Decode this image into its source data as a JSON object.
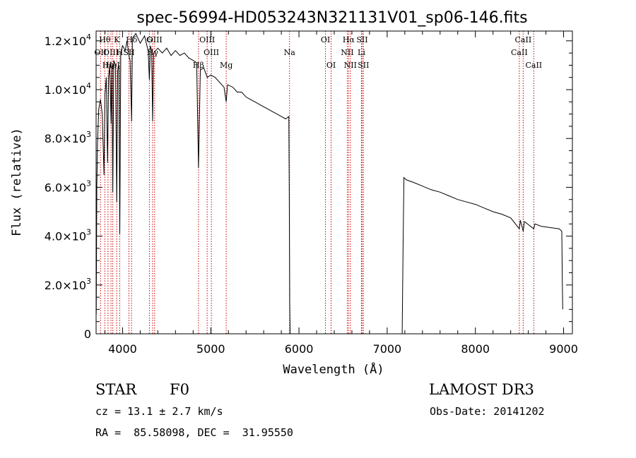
{
  "chart_data": {
    "type": "line",
    "title": "spec-56994-HD053243N321131V01_sp06-146.fits",
    "xlabel": "Wavelength (Å)",
    "ylabel": "Flux (relative)",
    "xlim": [
      3700,
      9100
    ],
    "ylim": [
      0,
      12400
    ],
    "x_ticks": [
      {
        "value": 4000,
        "label": "4000"
      },
      {
        "value": 5000,
        "label": "5000"
      },
      {
        "value": 6000,
        "label": "6000"
      },
      {
        "value": 7000,
        "label": "7000"
      },
      {
        "value": 8000,
        "label": "8000"
      },
      {
        "value": 9000,
        "label": "9000"
      }
    ],
    "y_ticks": [
      {
        "value": 0,
        "mant": "0",
        "exp": ""
      },
      {
        "value": 2000,
        "mant": "2.0×10",
        "exp": "3"
      },
      {
        "value": 4000,
        "mant": "4.0×10",
        "exp": "3"
      },
      {
        "value": 6000,
        "mant": "6.0×10",
        "exp": "3"
      },
      {
        "value": 8000,
        "mant": "8.0×10",
        "exp": "3"
      },
      {
        "value": 10000,
        "mant": "1.0×10",
        "exp": "4"
      },
      {
        "value": 12000,
        "mant": "1.2×10",
        "exp": "4"
      }
    ],
    "lines": [
      {
        "wl": 3750,
        "label": "OII",
        "row": 2
      },
      {
        "wl": 3799,
        "label": "Hθ",
        "row": 1
      },
      {
        "wl": 3835,
        "label": "Hη",
        "row": 3
      },
      {
        "wl": 3869,
        "label": "OIII",
        "row": 2
      },
      {
        "wl": 3889,
        "label": "HeI",
        "row": 3
      },
      {
        "wl": 3934,
        "label": "K",
        "row": 1
      },
      {
        "wl": 3968,
        "label": "H",
        "row": 2
      },
      {
        "wl": 4102,
        "label": "Hδ",
        "row": 1
      },
      {
        "wl": 4072,
        "label": "SII",
        "row": 2
      },
      {
        "wl": 4304,
        "label": "G",
        "row": 1
      },
      {
        "wl": 4341,
        "label": "Hγ",
        "row": 2
      },
      {
        "wl": 4363,
        "label": "OIII",
        "row": 1
      },
      {
        "wl": 4861,
        "label": "Hβ",
        "row": 4
      },
      {
        "wl": 4959,
        "label": "OIII",
        "row": 1
      },
      {
        "wl": 5007,
        "label": "OIII",
        "row": 2
      },
      {
        "wl": 5175,
        "label": "Mg",
        "row": 4
      },
      {
        "wl": 5893,
        "label": "Na",
        "row": 2
      },
      {
        "wl": 6300,
        "label": "OI",
        "row": 1
      },
      {
        "wl": 6364,
        "label": "OI",
        "row": 3
      },
      {
        "wl": 6548,
        "label": "NII",
        "row": 2
      },
      {
        "wl": 6563,
        "label": "Hα",
        "row": 1
      },
      {
        "wl": 6583,
        "label": "NII",
        "row": 3
      },
      {
        "wl": 6708,
        "label": "Li",
        "row": 2
      },
      {
        "wl": 6716,
        "label": "SII",
        "row": 1
      },
      {
        "wl": 6731,
        "label": "SII",
        "row": 3
      },
      {
        "wl": 8498,
        "label": "CaII",
        "row": 2
      },
      {
        "wl": 8542,
        "label": "CaII",
        "row": 1
      },
      {
        "wl": 8662,
        "label": "CaII",
        "row": 3
      }
    ],
    "spectrum": [
      [
        3702,
        800
      ],
      [
        3708,
        6000
      ],
      [
        3716,
        7800
      ],
      [
        3730,
        9200
      ],
      [
        3750,
        9600
      ],
      [
        3770,
        9000
      ],
      [
        3790,
        6500
      ],
      [
        3800,
        9800
      ],
      [
        3815,
        10500
      ],
      [
        3830,
        7000
      ],
      [
        3842,
        10500
      ],
      [
        3855,
        11000
      ],
      [
        3870,
        8600
      ],
      [
        3880,
        11000
      ],
      [
        3889,
        5800
      ],
      [
        3900,
        11200
      ],
      [
        3920,
        11000
      ],
      [
        3934,
        5400
      ],
      [
        3945,
        10800
      ],
      [
        3958,
        11000
      ],
      [
        3968,
        4100
      ],
      [
        3980,
        11500
      ],
      [
        4000,
        11800
      ],
      [
        4030,
        11600
      ],
      [
        4050,
        12000
      ],
      [
        4072,
        11400
      ],
      [
        4085,
        11200
      ],
      [
        4102,
        8700
      ],
      [
        4112,
        12100
      ],
      [
        4150,
        12300
      ],
      [
        4200,
        11900
      ],
      [
        4250,
        12200
      ],
      [
        4290,
        11600
      ],
      [
        4304,
        10400
      ],
      [
        4315,
        11800
      ],
      [
        4330,
        11600
      ],
      [
        4341,
        8700
      ],
      [
        4352,
        11500
      ],
      [
        4400,
        11700
      ],
      [
        4450,
        11500
      ],
      [
        4500,
        11700
      ],
      [
        4550,
        11400
      ],
      [
        4600,
        11600
      ],
      [
        4650,
        11400
      ],
      [
        4700,
        11500
      ],
      [
        4750,
        11300
      ],
      [
        4800,
        11200
      ],
      [
        4840,
        11100
      ],
      [
        4861,
        6800
      ],
      [
        4882,
        10800
      ],
      [
        4920,
        10900
      ],
      [
        4960,
        10500
      ],
      [
        5000,
        10600
      ],
      [
        5050,
        10500
      ],
      [
        5100,
        10300
      ],
      [
        5150,
        10100
      ],
      [
        5175,
        9500
      ],
      [
        5190,
        10200
      ],
      [
        5250,
        10100
      ],
      [
        5300,
        9900
      ],
      [
        5350,
        9900
      ],
      [
        5400,
        9700
      ],
      [
        5450,
        9600
      ],
      [
        5500,
        9500
      ],
      [
        5550,
        9400
      ],
      [
        5600,
        9300
      ],
      [
        5650,
        9200
      ],
      [
        5700,
        9100
      ],
      [
        5750,
        9000
      ],
      [
        5800,
        8900
      ],
      [
        5850,
        8800
      ],
      [
        5885,
        8900
      ],
      [
        5890,
        6000
      ],
      [
        5895,
        1200
      ],
      [
        5900,
        0
      ],
      [
        7170,
        0
      ],
      [
        7180,
        3600
      ],
      [
        7190,
        6400
      ],
      [
        7220,
        6300
      ],
      [
        7300,
        6200
      ],
      [
        7400,
        6050
      ],
      [
        7500,
        5900
      ],
      [
        7600,
        5800
      ],
      [
        7700,
        5650
      ],
      [
        7800,
        5500
      ],
      [
        7900,
        5400
      ],
      [
        8000,
        5300
      ],
      [
        8100,
        5150
      ],
      [
        8200,
        5000
      ],
      [
        8300,
        4900
      ],
      [
        8400,
        4750
      ],
      [
        8498,
        4300
      ],
      [
        8510,
        4650
      ],
      [
        8542,
        4200
      ],
      [
        8555,
        4600
      ],
      [
        8662,
        4300
      ],
      [
        8675,
        4500
      ],
      [
        8750,
        4400
      ],
      [
        8850,
        4350
      ],
      [
        8950,
        4300
      ],
      [
        8980,
        4200
      ],
      [
        8985,
        2500
      ],
      [
        8990,
        1000
      ]
    ]
  },
  "info": {
    "object_type": "STAR",
    "subclass": "F0",
    "survey": "LAMOST DR3",
    "cz": "cz = 13.1 ± 2.7 km/s",
    "obs_date": "Obs-Date: 20141202",
    "coords": "RA =  85.58098, DEC =  31.95550"
  },
  "colors": {
    "spectrum": "#000000",
    "lines": "#cc0000",
    "axes": "#000000"
  }
}
